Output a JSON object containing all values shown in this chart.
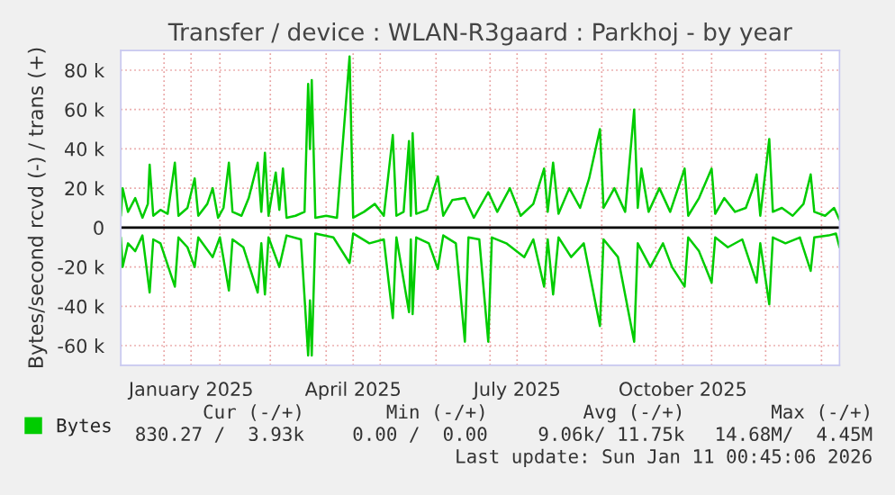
{
  "chart_data": {
    "type": "line",
    "title": "Transfer / device : WLAN-R3gaard : Parkhoj - by year",
    "ylabel": "Bytes/second rcvd (-) / trans (+)",
    "xlim": [
      "2024-12-08",
      "2026-01-11"
    ],
    "xticks": [
      {
        "value": "2025-01-01",
        "label": null
      },
      {
        "value": "2025-01-16",
        "label": "January 2025"
      },
      {
        "value": "2025-02-01",
        "label": null
      },
      {
        "value": "2025-03-01",
        "label": null
      },
      {
        "value": "2025-04-01",
        "label": null
      },
      {
        "value": "2025-04-16",
        "label": "April 2025"
      },
      {
        "value": "2025-05-01",
        "label": null
      },
      {
        "value": "2025-06-01",
        "label": null
      },
      {
        "value": "2025-07-01",
        "label": null
      },
      {
        "value": "2025-07-16",
        "label": "July 2025"
      },
      {
        "value": "2025-08-01",
        "label": null
      },
      {
        "value": "2025-09-01",
        "label": null
      },
      {
        "value": "2025-10-01",
        "label": null
      },
      {
        "value": "2025-10-16",
        "label": "October 2025"
      },
      {
        "value": "2025-11-01",
        "label": null
      },
      {
        "value": "2025-12-01",
        "label": null
      },
      {
        "value": "2026-01-01",
        "label": null
      }
    ],
    "ylim": [
      -70000,
      90000
    ],
    "yticks": [
      {
        "value": -60000,
        "label": "-60 k"
      },
      {
        "value": -40000,
        "label": "-40 k"
      },
      {
        "value": -20000,
        "label": "-20 k"
      },
      {
        "value": 0,
        "label": "0"
      },
      {
        "value": 20000,
        "label": "20 k"
      },
      {
        "value": 40000,
        "label": "40 k"
      },
      {
        "value": 60000,
        "label": "60 k"
      },
      {
        "value": 80000,
        "label": "80 k"
      }
    ],
    "grid": true,
    "legend": "bottom left",
    "ref_lines": [
      {
        "axis": "y",
        "value": 0,
        "color": "#000000"
      }
    ],
    "series": [
      {
        "name": "Bytes",
        "color": "#00cc00",
        "x": [
          "2024-12-08",
          "2024-12-09",
          "2024-12-12",
          "2024-12-16",
          "2024-12-20",
          "2024-12-23",
          "2024-12-24",
          "2024-12-26",
          "2024-12-30",
          "2025-01-03",
          "2025-01-07",
          "2025-01-09",
          "2025-01-14",
          "2025-01-18",
          "2025-01-20",
          "2025-01-25",
          "2025-01-28",
          "2025-01-31",
          "2025-02-03",
          "2025-02-06",
          "2025-02-08",
          "2025-02-13",
          "2025-02-17",
          "2025-02-22",
          "2025-02-24",
          "2025-02-26",
          "2025-02-28",
          "2025-03-04",
          "2025-03-06",
          "2025-03-08",
          "2025-03-10",
          "2025-03-15",
          "2025-03-20",
          "2025-03-22",
          "2025-03-23",
          "2025-03-24",
          "2025-03-26",
          "2025-04-01",
          "2025-04-07",
          "2025-04-14",
          "2025-04-16",
          "2025-04-22",
          "2025-04-28",
          "2025-05-03",
          "2025-05-08",
          "2025-05-10",
          "2025-05-14",
          "2025-05-17",
          "2025-05-18",
          "2025-05-19",
          "2025-05-21",
          "2025-05-27",
          "2025-06-02",
          "2025-06-05",
          "2025-06-10",
          "2025-06-17",
          "2025-06-22",
          "2025-06-30",
          "2025-07-05",
          "2025-07-12",
          "2025-07-18",
          "2025-07-25",
          "2025-07-31",
          "2025-08-02",
          "2025-08-05",
          "2025-08-08",
          "2025-08-14",
          "2025-08-20",
          "2025-08-25",
          "2025-08-31",
          "2025-09-02",
          "2025-09-08",
          "2025-09-14",
          "2025-09-19",
          "2025-09-21",
          "2025-09-23",
          "2025-09-27",
          "2025-10-03",
          "2025-10-09",
          "2025-10-17",
          "2025-10-19",
          "2025-10-25",
          "2025-11-01",
          "2025-11-03",
          "2025-11-08",
          "2025-11-14",
          "2025-11-20",
          "2025-11-24",
          "2025-11-26",
          "2025-11-28",
          "2025-12-03",
          "2025-12-05",
          "2025-12-10",
          "2025-12-16",
          "2025-12-22",
          "2025-12-26",
          "2025-12-28",
          "2026-01-03",
          "2026-01-08",
          "2026-01-11"
        ],
        "values": [
          6000,
          20000,
          8000,
          15000,
          5000,
          12000,
          32000,
          6000,
          9000,
          7000,
          33000,
          6000,
          10000,
          25000,
          6000,
          12000,
          20000,
          5000,
          10000,
          33000,
          8000,
          6000,
          15000,
          33000,
          8000,
          38000,
          6000,
          28000,
          9000,
          30000,
          5000,
          6000,
          8000,
          73000,
          40000,
          75000,
          5000,
          6000,
          5000,
          87000,
          5000,
          8000,
          12000,
          6000,
          47000,
          6000,
          8000,
          44000,
          6000,
          48000,
          7000,
          9000,
          26000,
          6000,
          14000,
          15000,
          5000,
          18000,
          8000,
          20000,
          6000,
          12000,
          30000,
          8000,
          33000,
          7000,
          20000,
          10000,
          25000,
          50000,
          10000,
          20000,
          8000,
          60000,
          10000,
          30000,
          8000,
          20000,
          8000,
          30000,
          6000,
          15000,
          30000,
          7000,
          15000,
          8000,
          10000,
          20000,
          27000,
          6000,
          45000,
          8000,
          10000,
          6000,
          12000,
          27000,
          8000,
          6000,
          10000,
          4000
        ]
      },
      {
        "color": "#00cc00",
        "x": [
          "2024-12-08",
          "2024-12-09",
          "2024-12-12",
          "2024-12-16",
          "2024-12-20",
          "2024-12-24",
          "2024-12-26",
          "2024-12-30",
          "2025-01-07",
          "2025-01-09",
          "2025-01-14",
          "2025-01-18",
          "2025-01-20",
          "2025-01-28",
          "2025-02-01",
          "2025-02-06",
          "2025-02-08",
          "2025-02-14",
          "2025-02-22",
          "2025-02-24",
          "2025-02-26",
          "2025-02-28",
          "2025-03-06",
          "2025-03-10",
          "2025-03-18",
          "2025-03-22",
          "2025-03-23",
          "2025-03-24",
          "2025-03-26",
          "2025-04-05",
          "2025-04-14",
          "2025-04-16",
          "2025-04-25",
          "2025-05-03",
          "2025-05-08",
          "2025-05-10",
          "2025-05-17",
          "2025-05-18",
          "2025-05-19",
          "2025-05-21",
          "2025-05-28",
          "2025-06-02",
          "2025-06-05",
          "2025-06-12",
          "2025-06-17",
          "2025-06-19",
          "2025-06-25",
          "2025-06-30",
          "2025-07-02",
          "2025-07-10",
          "2025-07-20",
          "2025-07-25",
          "2025-07-31",
          "2025-08-02",
          "2025-08-05",
          "2025-08-08",
          "2025-08-15",
          "2025-08-22",
          "2025-08-31",
          "2025-09-02",
          "2025-09-10",
          "2025-09-19",
          "2025-09-21",
          "2025-09-28",
          "2025-10-05",
          "2025-10-10",
          "2025-10-17",
          "2025-10-19",
          "2025-10-25",
          "2025-11-01",
          "2025-11-03",
          "2025-11-10",
          "2025-11-18",
          "2025-11-26",
          "2025-11-28",
          "2025-12-03",
          "2025-12-05",
          "2025-12-12",
          "2025-12-20",
          "2025-12-26",
          "2025-12-28",
          "2026-01-05",
          "2026-01-09",
          "2026-01-11"
        ],
        "values": [
          -5000,
          -20000,
          -8000,
          -12000,
          -4000,
          -33000,
          -6000,
          -8000,
          -30000,
          -5000,
          -10000,
          -20000,
          -5000,
          -15000,
          -5000,
          -32000,
          -6000,
          -10000,
          -33000,
          -8000,
          -34000,
          -5000,
          -20000,
          -4000,
          -6000,
          -65000,
          -37000,
          -65000,
          -3000,
          -5000,
          -18000,
          -3000,
          -8000,
          -6000,
          -46000,
          -5000,
          -43000,
          -6000,
          -44000,
          -5000,
          -8000,
          -21000,
          -4000,
          -8000,
          -58000,
          -5000,
          -6000,
          -58000,
          -5000,
          -8000,
          -15000,
          -6000,
          -30000,
          -6000,
          -34000,
          -5000,
          -15000,
          -8000,
          -50000,
          -6000,
          -15000,
          -58000,
          -8000,
          -20000,
          -8000,
          -20000,
          -30000,
          -5000,
          -12000,
          -28000,
          -5000,
          -10000,
          -6000,
          -28000,
          -8000,
          -39000,
          -5000,
          -8000,
          -5000,
          -22000,
          -5000,
          -4000,
          -3000,
          -10000
        ]
      }
    ],
    "annotations": [
      "Cur (-/+)",
      "Min (-/+)",
      "Avg (-/+)",
      "Max (-/+)",
      "830.27 /  3.93k",
      "0.00 /  0.00",
      "9.06k/ 11.75k",
      "14.68M/  4.45M",
      "Last update: Sun Jan 11 00:45:06 2026"
    ]
  }
}
